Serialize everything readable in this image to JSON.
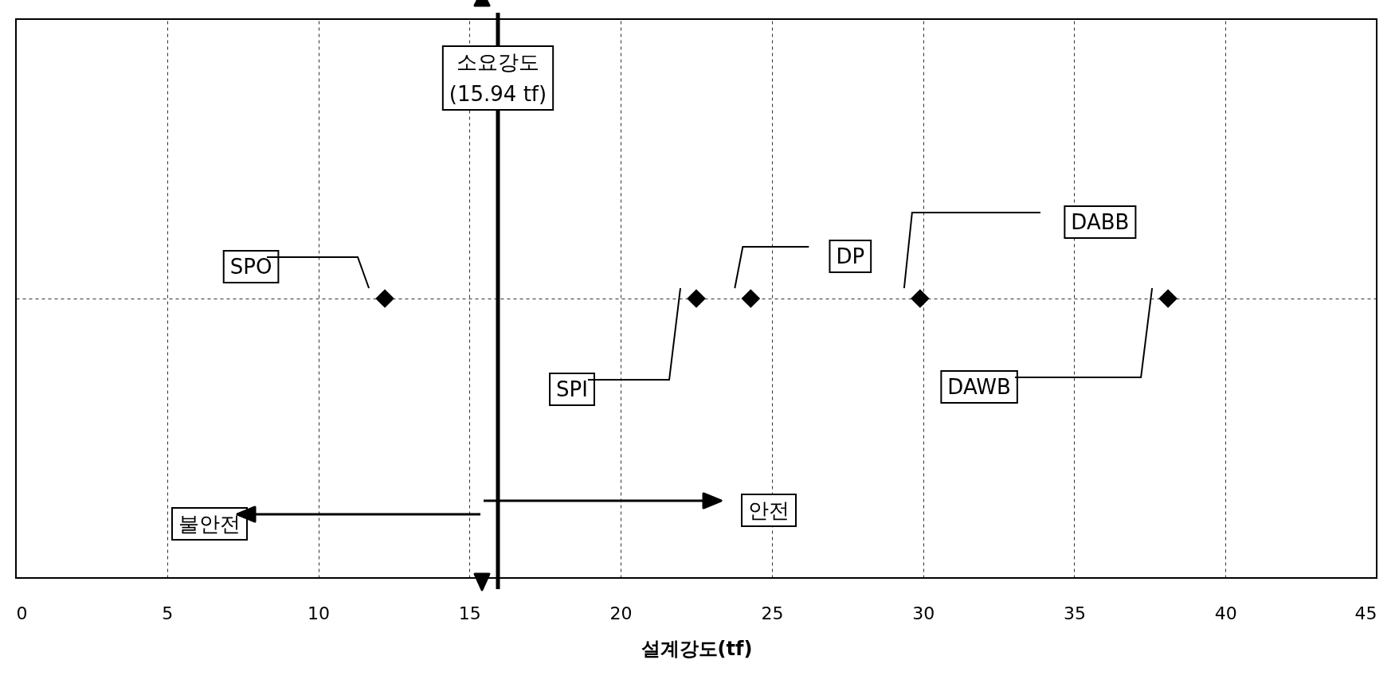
{
  "chart_data": {
    "type": "scatter",
    "orientation": "horizontal",
    "xlabel": "설계강도(tf)",
    "categories": [
      null
    ],
    "series": [
      {
        "name": "SPO",
        "color": "#000000",
        "values": [
          12.2
        ]
      },
      {
        "name": "SPI",
        "color": "#000000",
        "values": [
          22.5
        ]
      },
      {
        "name": "DP",
        "color": "#000000",
        "values": [
          24.3
        ]
      },
      {
        "name": "DABB",
        "color": "#000000",
        "values": [
          29.9
        ]
      },
      {
        "name": "DAWB",
        "color": "#000000",
        "values": [
          38.1
        ]
      }
    ],
    "marker": "diamond",
    "xlim": [
      0,
      45
    ],
    "xticks": [
      0,
      5,
      10,
      15,
      20,
      25,
      30,
      35,
      40,
      45
    ],
    "grid": true,
    "tick_labels": "x",
    "ref_lines": [
      {
        "axis": "x",
        "value": 15.94,
        "label": "소요강도\n(15.94 tf)",
        "color": "#000000"
      }
    ],
    "annotations": [
      "불안전",
      "안전"
    ]
  }
}
